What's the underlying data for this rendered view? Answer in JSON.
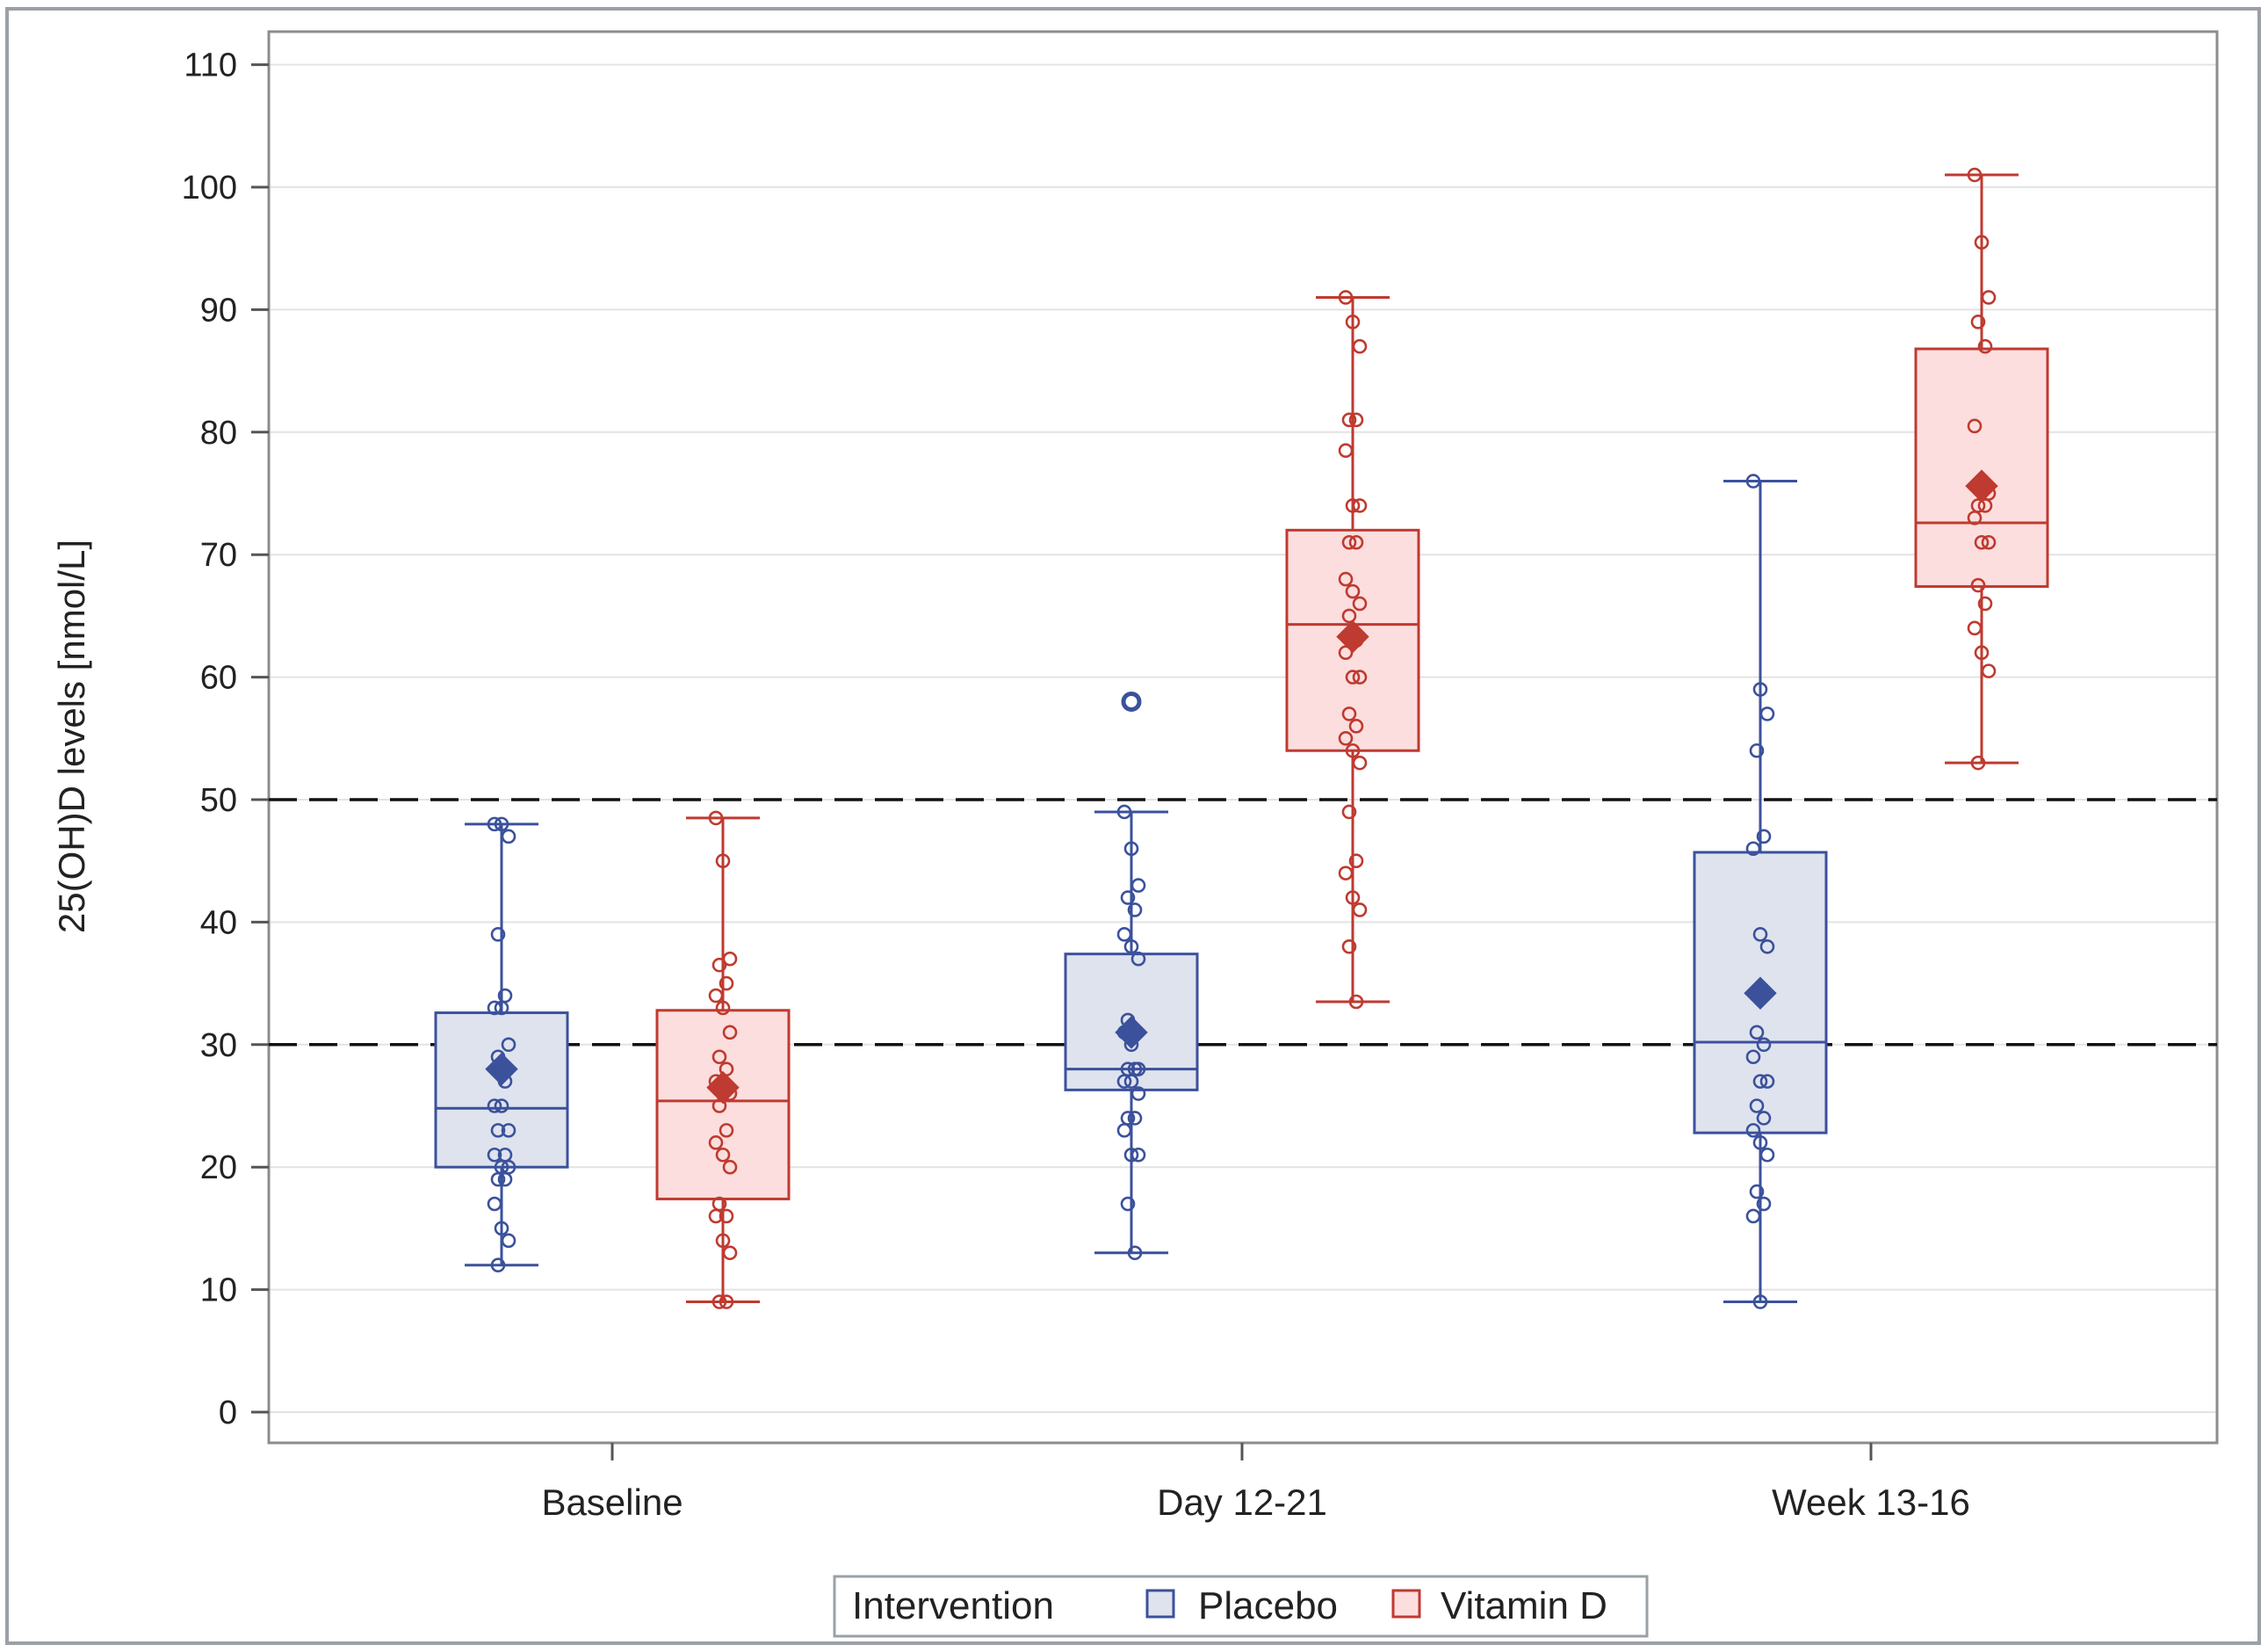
{
  "chart_data": {
    "type": "box",
    "title": "",
    "ylabel": "25(OH)D levels [nmol/L]",
    "xlabel": "",
    "ylim": [
      0,
      110
    ],
    "yticks": [
      0,
      10,
      20,
      30,
      40,
      50,
      60,
      70,
      80,
      90,
      100,
      110
    ],
    "categories": [
      "Baseline",
      "Day 12-21",
      "Week 13-16"
    ],
    "reference_lines": [
      30,
      50
    ],
    "grid": true,
    "legend": {
      "title": "Intervention",
      "placement": "bottom-center",
      "entries": [
        "Placebo",
        "Vitamin D"
      ]
    },
    "series": [
      {
        "name": "Placebo",
        "stroke": "#3b519c",
        "fill": "#dfe3ee",
        "boxes": [
          {
            "category": "Baseline",
            "whisker_low": 12,
            "q1": 20,
            "median": 24.8,
            "q3": 32.6,
            "whisker_high": 48,
            "mean": 28,
            "points": [
              48,
              48,
              47,
              39,
              34,
              33,
              33,
              30,
              29,
              27,
              25,
              25,
              23,
              23,
              21,
              21,
              20,
              20,
              19,
              19,
              17,
              15,
              14,
              12
            ]
          },
          {
            "category": "Day 12-21",
            "whisker_low": 13,
            "q1": 26.3,
            "median": 28,
            "q3": 37.4,
            "whisker_high": 49,
            "mean": 31,
            "outliers": [
              58
            ],
            "points": [
              49,
              46,
              43,
              42,
              41,
              39,
              38,
              37,
              32,
              31,
              31,
              30,
              28,
              28,
              28,
              27,
              27,
              26,
              24,
              24,
              23,
              21,
              21,
              17,
              13
            ]
          },
          {
            "category": "Week 13-16",
            "whisker_low": 9,
            "q1": 22.8,
            "median": 30.2,
            "q3": 45.7,
            "whisker_high": 76,
            "mean": 34.2,
            "points": [
              76,
              59,
              57,
              54,
              47,
              46,
              39,
              38,
              31,
              30,
              29,
              27,
              27,
              25,
              24,
              23,
              22,
              21,
              18,
              17,
              16,
              9
            ]
          }
        ]
      },
      {
        "name": "Vitamin D",
        "stroke": "#bf3a30",
        "fill": "#fcdede",
        "boxes": [
          {
            "category": "Baseline",
            "whisker_low": 9,
            "q1": 17.4,
            "median": 25.4,
            "q3": 32.8,
            "whisker_high": 48.5,
            "mean": 26.5,
            "points": [
              48.5,
              45,
              37,
              36.5,
              35,
              34,
              33,
              31,
              29,
              28,
              27,
              26,
              26,
              25,
              23,
              22,
              21,
              20,
              17,
              16,
              16,
              14,
              13,
              9,
              9
            ]
          },
          {
            "category": "Day 12-21",
            "whisker_low": 33.5,
            "q1": 54,
            "median": 64.3,
            "q3": 72,
            "whisker_high": 91,
            "mean": 63.3,
            "points": [
              91,
              89,
              87,
              81,
              81,
              78.5,
              74,
              74,
              71,
              71,
              68,
              67,
              66,
              65,
              63,
              62,
              60,
              60,
              57,
              56,
              55,
              54,
              53,
              49,
              45,
              44,
              42,
              41,
              38,
              33.5
            ]
          },
          {
            "category": "Week 13-16",
            "whisker_low": 53,
            "q1": 67.4,
            "median": 72.6,
            "q3": 86.8,
            "whisker_high": 101,
            "mean": 75.6,
            "points": [
              101,
              95.5,
              91,
              89,
              87,
              80.5,
              76,
              75,
              74,
              74,
              73,
              71,
              71,
              67.5,
              66,
              64,
              62,
              60.5,
              53
            ]
          }
        ]
      }
    ]
  }
}
